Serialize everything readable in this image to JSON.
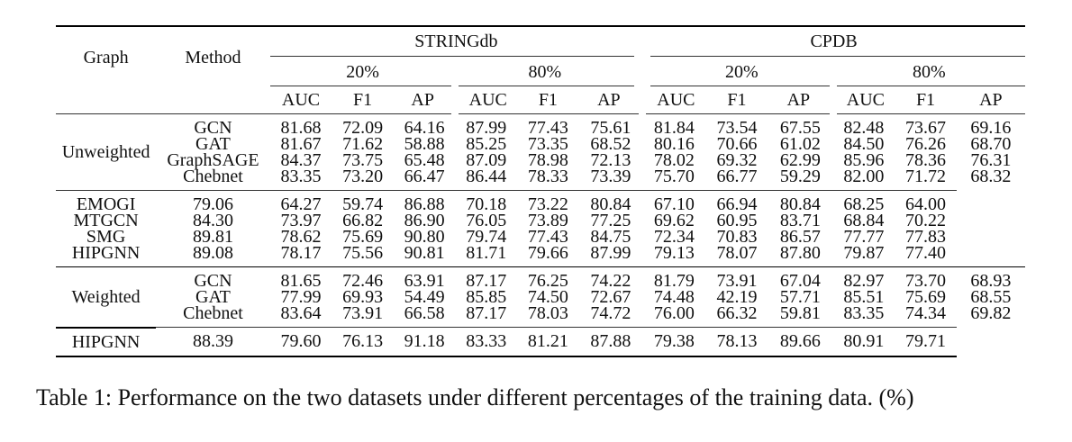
{
  "table": {
    "col_graph": "Graph",
    "col_method": "Method",
    "datasets": [
      "STRINGdb",
      "CPDB"
    ],
    "ratios": [
      "20%",
      "80%",
      "20%",
      "80%"
    ],
    "metrics": [
      "AUC",
      "F1",
      "AP",
      "AUC",
      "F1",
      "AP",
      "AUC",
      "F1",
      "AP",
      "AUC",
      "F1",
      "AP"
    ],
    "groups": [
      {
        "graph": "Unweighted",
        "blocks": [
          [
            {
              "method": "GCN",
              "values": [
                "81.68",
                "72.09",
                "64.16",
                "87.99",
                "77.43",
                "75.61",
                "81.84",
                "73.54",
                "67.55",
                "82.48",
                "73.67",
                "69.16"
              ]
            },
            {
              "method": "GAT",
              "values": [
                "81.67",
                "71.62",
                "58.88",
                "85.25",
                "73.35",
                "68.52",
                "80.16",
                "70.66",
                "61.02",
                "84.50",
                "76.26",
                "68.70"
              ]
            },
            {
              "method": "GraphSAGE",
              "values": [
                "84.37",
                "73.75",
                "65.48",
                "87.09",
                "78.98",
                "72.13",
                "78.02",
                "69.32",
                "62.99",
                "85.96",
                "78.36",
                "76.31"
              ]
            },
            {
              "method": "Chebnet",
              "values": [
                "83.35",
                "73.20",
                "66.47",
                "86.44",
                "78.33",
                "73.39",
                "75.70",
                "66.77",
                "59.29",
                "82.00",
                "71.72",
                "68.32"
              ]
            }
          ],
          [
            {
              "method": "EMOGI",
              "values": [
                "79.06",
                "64.27",
                "59.74",
                "86.88",
                "70.18",
                "73.22",
                "80.84",
                "67.10",
                "66.94",
                "80.84",
                "68.25",
                "64.00"
              ]
            },
            {
              "method": "MTGCN",
              "values": [
                "84.30",
                "73.97",
                "66.82",
                "86.90",
                "76.05",
                "73.89",
                "77.25",
                "69.62",
                "60.95",
                "83.71",
                "68.84",
                "70.22"
              ]
            },
            {
              "method": "SMG",
              "values": [
                "89.81",
                "78.62",
                "75.69",
                "90.80",
                "79.74",
                "77.43",
                "84.75",
                "72.34",
                "70.83",
                "86.57",
                "77.77",
                "77.83"
              ],
              "bold": [
                0
              ]
            },
            {
              "method": "HIPGNN",
              "values": [
                "89.08",
                "78.17",
                "75.56",
                "90.81",
                "81.71",
                "79.66",
                "87.99",
                "79.13",
                "78.07",
                "87.80",
                "79.87",
                "77.40"
              ],
              "bold": [
                6
              ]
            }
          ]
        ]
      },
      {
        "graph": "Weighted",
        "blocks": [
          [
            {
              "method": "GCN",
              "values": [
                "81.65",
                "72.46",
                "63.91",
                "87.17",
                "76.25",
                "74.22",
                "81.79",
                "73.91",
                "67.04",
                "82.97",
                "73.70",
                "68.93"
              ]
            },
            {
              "method": "GAT",
              "values": [
                "77.99",
                "69.93",
                "54.49",
                "85.85",
                "74.50",
                "72.67",
                "74.48",
                "42.19",
                "57.71",
                "85.51",
                "75.69",
                "68.55"
              ]
            },
            {
              "method": "Chebnet",
              "values": [
                "83.64",
                "73.91",
                "66.58",
                "87.17",
                "78.03",
                "74.72",
                "76.00",
                "66.32",
                "59.81",
                "83.35",
                "74.34",
                "69.82"
              ]
            }
          ],
          [
            {
              "method": "HIPGNN",
              "values": [
                "88.39",
                "79.60",
                "76.13",
                "91.18",
                "83.33",
                "81.21",
                "87.88",
                "79.38",
                "78.13",
                "89.66",
                "80.91",
                "79.71"
              ],
              "bold": [
                1,
                2,
                3,
                4,
                5,
                7,
                8,
                9,
                10,
                11
              ]
            }
          ]
        ]
      }
    ]
  },
  "caption": "Table 1: Performance on the two datasets under different percentages of the training data. (%)"
}
